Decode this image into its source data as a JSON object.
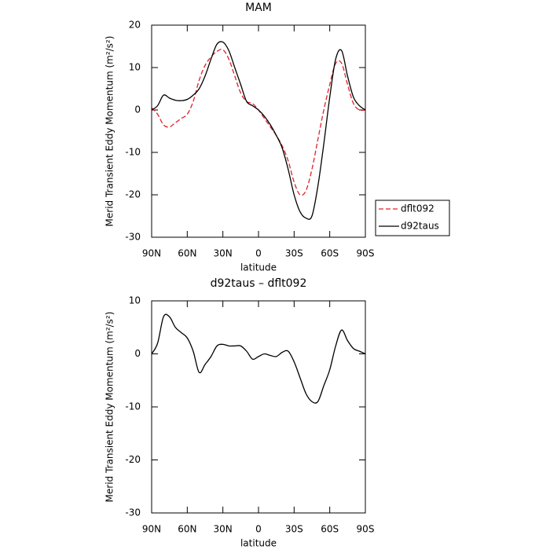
{
  "chart_data": [
    {
      "type": "line",
      "title": "MAM",
      "xlabel": "latitude",
      "ylabel": "Merid Transient Eddy Momentum (m²/s²)",
      "x": [
        90,
        85,
        80,
        75,
        70,
        65,
        60,
        55,
        50,
        45,
        40,
        35,
        30,
        25,
        20,
        15,
        10,
        5,
        0,
        -5,
        -10,
        -15,
        -20,
        -25,
        -30,
        -35,
        -40,
        -45,
        -50,
        -55,
        -60,
        -65,
        -70,
        -75,
        -80,
        -85,
        -90
      ],
      "series": [
        {
          "name": "dflt092",
          "color": "#e0202a",
          "dash": true,
          "values": [
            0.5,
            -1,
            -3.5,
            -4,
            -3,
            -2,
            -1,
            2,
            7,
            10.5,
            12.5,
            13.8,
            14.2,
            12,
            8,
            4,
            2,
            1.5,
            0,
            -2,
            -4,
            -6,
            -8.5,
            -12,
            -17,
            -20,
            -19,
            -14,
            -7,
            0,
            6,
            11,
            11,
            6,
            1.5,
            0,
            0
          ]
        },
        {
          "name": "d92taus",
          "color": "#000000",
          "dash": false,
          "values": [
            0,
            1,
            3.5,
            2.8,
            2.3,
            2.2,
            2.5,
            3.5,
            5,
            8,
            12,
            15.5,
            16,
            14,
            10,
            6,
            2,
            1,
            0,
            -1.5,
            -3.5,
            -6,
            -9,
            -14,
            -20,
            -24,
            -25.5,
            -25,
            -18,
            -8,
            3,
            12,
            14,
            8,
            3,
            1,
            0
          ]
        }
      ],
      "xlim": [
        90,
        -90
      ],
      "xticks": [
        {
          "value": 90,
          "label": "90N"
        },
        {
          "value": 60,
          "label": "60N"
        },
        {
          "value": 30,
          "label": "30N"
        },
        0,
        {
          "value": -30,
          "label": "30S"
        },
        {
          "value": -60,
          "label": "60S"
        },
        {
          "value": -90,
          "label": "90S"
        }
      ],
      "ylim": [
        -30,
        20
      ],
      "yticks": [
        -30,
        -20,
        -10,
        0,
        10,
        20
      ],
      "legend": "right"
    },
    {
      "type": "line",
      "title": "d92taus – dflt092",
      "xlabel": "latitude",
      "ylabel": "Merid Transient Eddy Momentum (m²/s²)",
      "x": [
        90,
        85,
        80,
        75,
        70,
        65,
        60,
        55,
        50,
        45,
        40,
        35,
        30,
        25,
        20,
        15,
        10,
        5,
        0,
        -5,
        -10,
        -15,
        -20,
        -25,
        -30,
        -35,
        -40,
        -45,
        -50,
        -55,
        -60,
        -65,
        -70,
        -75,
        -80,
        -85,
        -90
      ],
      "color": "#000000",
      "values": [
        0,
        2,
        7,
        7,
        5,
        4,
        3,
        0.5,
        -3.5,
        -2,
        -0.5,
        1.5,
        1.8,
        1.5,
        1.5,
        1.5,
        0.5,
        -1,
        -0.5,
        0,
        -0.3,
        -0.5,
        0.3,
        0.5,
        -1.5,
        -4.5,
        -7.5,
        -9,
        -9,
        -6,
        -3,
        1.5,
        4.5,
        2.5,
        1,
        0.5,
        0
      ],
      "xlim": [
        90,
        -90
      ],
      "xticks": [
        {
          "value": 90,
          "label": "90N"
        },
        {
          "value": 60,
          "label": "60N"
        },
        {
          "value": 30,
          "label": "30N"
        },
        0,
        {
          "value": -30,
          "label": "30S"
        },
        {
          "value": -60,
          "label": "60S"
        },
        {
          "value": -90,
          "label": "90S"
        }
      ],
      "ylim": [
        -30,
        10
      ],
      "yticks": [
        -30,
        -20,
        -10,
        0,
        10
      ]
    }
  ]
}
